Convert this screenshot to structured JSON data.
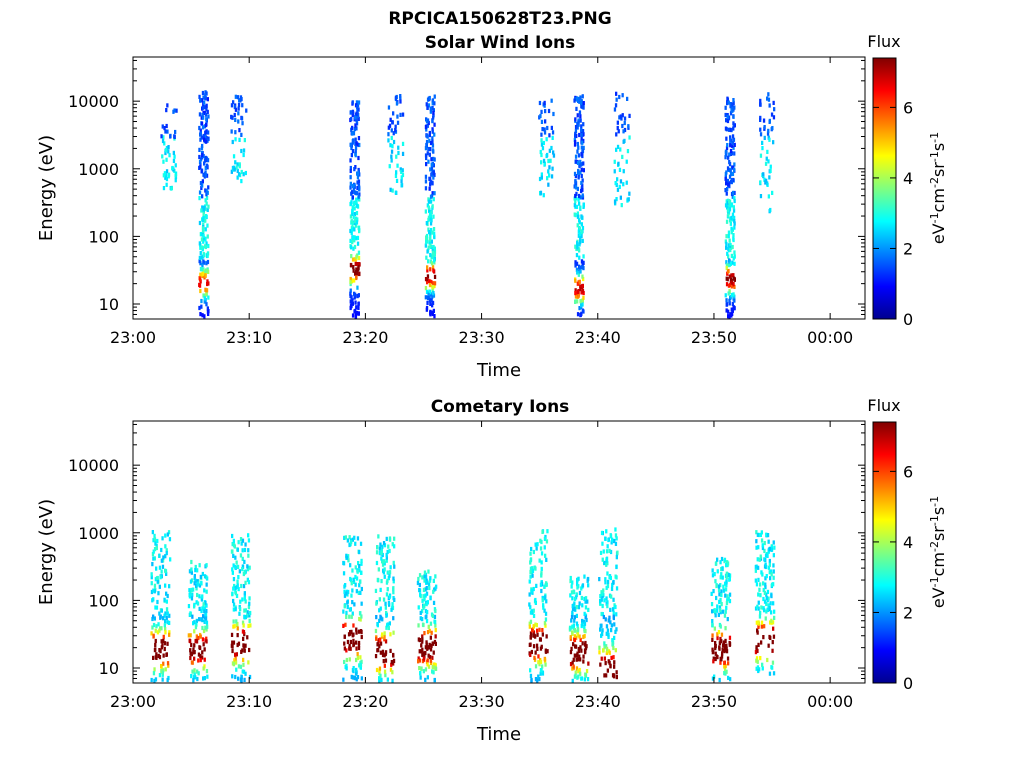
{
  "figure_title": "RPCICA150628T23.PNG",
  "chart_data": [
    {
      "type": "heatmap",
      "title": "Solar Wind Ions",
      "xlabel": "Time",
      "ylabel": "Energy (eV)",
      "y_scale": "log",
      "x_range": [
        "23:00",
        "00:03"
      ],
      "ylim": [
        6,
        45000
      ],
      "x_ticks": [
        "23:00",
        "23:10",
        "23:20",
        "23:30",
        "23:40",
        "23:50",
        "00:00"
      ],
      "y_ticks": [
        "10",
        "100",
        "1000",
        "10000"
      ],
      "colorbar": {
        "label": "Flux",
        "unit": "eV-1cm-2sr-1s-1",
        "range": [
          0,
          7.4
        ],
        "ticks": [
          "0",
          "2",
          "4",
          "6"
        ],
        "colormap": "jet"
      },
      "bursts": [
        {
          "time": "23:06",
          "emin": 6,
          "emax": 15000,
          "peak_energy": 22,
          "peak_flux": 5.5,
          "type": "main"
        },
        {
          "time": "23:19",
          "emin": 6,
          "emax": 13000,
          "peak_energy": 35,
          "peak_flux": 6.8,
          "type": "main"
        },
        {
          "time": "23:25.5",
          "emin": 6,
          "emax": 13000,
          "peak_energy": 28,
          "peak_flux": 6.3,
          "type": "main"
        },
        {
          "time": "23:38.3",
          "emin": 6,
          "emax": 13000,
          "peak_energy": 18,
          "peak_flux": 5.8,
          "type": "main"
        },
        {
          "time": "23:51.3",
          "emin": 6,
          "emax": 12000,
          "peak_energy": 25,
          "peak_flux": 6.2,
          "type": "main"
        },
        {
          "time": "23:03",
          "emin": 500,
          "emax": 11000,
          "type": "sparse"
        },
        {
          "time": "23:09",
          "emin": 700,
          "emax": 14000,
          "type": "sparse"
        },
        {
          "time": "23:22.5",
          "emin": 400,
          "emax": 13000,
          "type": "sparse"
        },
        {
          "time": "23:35.5",
          "emin": 400,
          "emax": 12000,
          "type": "sparse"
        },
        {
          "time": "23:42",
          "emin": 300,
          "emax": 14000,
          "type": "sparse"
        },
        {
          "time": "23:54.5",
          "emin": 250,
          "emax": 14000,
          "type": "sparse"
        }
      ]
    },
    {
      "type": "heatmap",
      "title": "Cometary Ions",
      "xlabel": "Time",
      "ylabel": "Energy (eV)",
      "y_scale": "log",
      "x_range": [
        "23:00",
        "00:03"
      ],
      "ylim": [
        6,
        45000
      ],
      "x_ticks": [
        "23:00",
        "23:10",
        "23:20",
        "23:30",
        "23:40",
        "23:50",
        "00:00"
      ],
      "y_ticks": [
        "10",
        "100",
        "1000",
        "10000"
      ],
      "colorbar": {
        "label": "Flux",
        "unit": "eV-1cm-2sr-1s-1",
        "range": [
          0,
          7.4
        ],
        "ticks": [
          "0",
          "2",
          "4",
          "6"
        ],
        "colormap": "jet"
      },
      "bursts": [
        {
          "time": "23:02.3",
          "emin": 6,
          "emax": 1100,
          "peak_energy": 20,
          "peak_flux": 6.5
        },
        {
          "time": "23:05.5",
          "emin": 6,
          "emax": 400,
          "peak_energy": 20,
          "peak_flux": 5.8
        },
        {
          "time": "23:09.2",
          "emin": 6,
          "emax": 1000,
          "peak_energy": 25,
          "peak_flux": 6.8
        },
        {
          "time": "23:18.8",
          "emin": 6,
          "emax": 1000,
          "peak_energy": 30,
          "peak_flux": 7.0
        },
        {
          "time": "23:21.6",
          "emin": 6,
          "emax": 1000,
          "peak_energy": 18,
          "peak_flux": 7.0
        },
        {
          "time": "23:25.2",
          "emin": 6,
          "emax": 300,
          "peak_energy": 22,
          "peak_flux": 6.8
        },
        {
          "time": "23:34.8",
          "emin": 6,
          "emax": 1200,
          "peak_energy": 25,
          "peak_flux": 7.0
        },
        {
          "time": "23:38.3",
          "emin": 6,
          "emax": 250,
          "peak_energy": 18,
          "peak_flux": 6.8
        },
        {
          "time": "23:40.8",
          "emin": 6,
          "emax": 1200,
          "peak_energy": 10,
          "peak_flux": 6.9
        },
        {
          "time": "23:50.5",
          "emin": 6,
          "emax": 450,
          "peak_energy": 20,
          "peak_flux": 6.8
        },
        {
          "time": "23:54.3",
          "emin": 8,
          "emax": 1100,
          "peak_energy": 28,
          "peak_flux": 7.0
        }
      ]
    }
  ]
}
